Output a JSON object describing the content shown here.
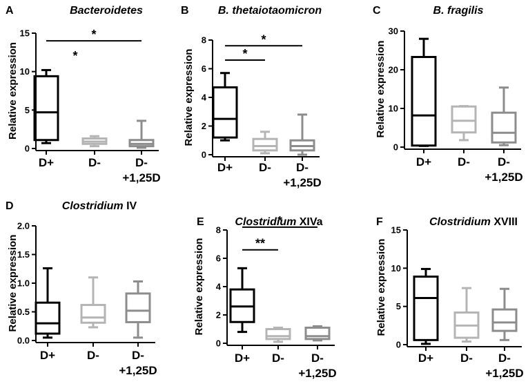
{
  "colors": {
    "D+": "#000000",
    "D-": "#b4b4b4",
    "D-+1,25D": "#8c8c8c"
  },
  "chart_data": [
    {
      "type": "box",
      "label": "A",
      "title_italic": "Bacteroidetes",
      "title_rest": "",
      "ylabel": "Relative expression",
      "ylim": [
        0,
        15
      ],
      "yticks": [
        "0",
        "5",
        "10",
        "15"
      ],
      "categories": [
        "D+",
        "D-",
        "D-\n+1,25D"
      ],
      "groups": [
        {
          "name": "D+",
          "min": 0.7,
          "q1": 1.1,
          "median": 4.7,
          "q3": 9.4,
          "max": 10.2
        },
        {
          "name": "D-",
          "min": 0.3,
          "q1": 0.6,
          "median": 0.9,
          "q3": 1.3,
          "max": 1.6
        },
        {
          "name": "D-+1,25D",
          "min": 0.1,
          "q1": 0.3,
          "median": 0.6,
          "q3": 1.1,
          "max": 3.6
        }
      ],
      "significance": [
        {
          "from": 0,
          "to": 2,
          "label": "*",
          "y": 14.0,
          "bar": true
        },
        {
          "from": 0,
          "to": 0,
          "label": "*",
          "y": 11.5,
          "bar": false,
          "at": 0.6
        }
      ]
    },
    {
      "type": "box",
      "label": "B",
      "title_italic": "B. thetaiotaomicron",
      "title_rest": "",
      "ylabel": "Relative expression",
      "ylim": [
        0,
        8
      ],
      "yticks": [
        "0",
        "2",
        "4",
        "6",
        "8"
      ],
      "categories": [
        "D+",
        "D-",
        "D-\n+1,25D"
      ],
      "groups": [
        {
          "name": "D+",
          "min": 1.0,
          "q1": 1.2,
          "median": 2.5,
          "q3": 4.7,
          "max": 5.7
        },
        {
          "name": "D-",
          "min": 0.1,
          "q1": 0.3,
          "median": 0.6,
          "q3": 1.1,
          "max": 1.6
        },
        {
          "name": "D-+1,25D",
          "min": 0.0,
          "q1": 0.3,
          "median": 0.6,
          "q3": 1.0,
          "max": 2.8
        }
      ],
      "significance": [
        {
          "from": 0,
          "to": 2,
          "label": "*",
          "y": 7.6,
          "bar": true
        },
        {
          "from": 0,
          "to": 1,
          "label": "*",
          "y": 6.6,
          "bar": true
        }
      ]
    },
    {
      "type": "box",
      "label": "C",
      "title_italic": "B. fragilis",
      "title_rest": "",
      "ylabel": "Relative expression",
      "ylim": [
        0,
        30
      ],
      "yticks": [
        "0",
        "10",
        "20",
        "30"
      ],
      "categories": [
        "D+",
        "D-",
        "D-\n+1,25D"
      ],
      "groups": [
        {
          "name": "D+",
          "min": 0.3,
          "q1": 0.4,
          "median": 8.2,
          "q3": 23.3,
          "max": 28.0
        },
        {
          "name": "D-",
          "min": 1.8,
          "q1": 3.8,
          "median": 6.8,
          "q3": 10.5,
          "max": 10.6
        },
        {
          "name": "D-+1,25D",
          "min": 0.5,
          "q1": 1.2,
          "median": 3.7,
          "q3": 8.9,
          "max": 15.4
        }
      ],
      "significance": []
    },
    {
      "type": "box",
      "label": "D",
      "title_italic": "Clostridium",
      "title_rest": " IV",
      "ylabel": "Relative expression",
      "ylim": [
        0,
        2
      ],
      "yticks": [
        "0.0",
        "0.5",
        "1.0",
        "1.5",
        "2.0"
      ],
      "categories": [
        "D+",
        "D-",
        "D-\n+1,25D"
      ],
      "groups": [
        {
          "name": "D+",
          "min": 0.05,
          "q1": 0.12,
          "median": 0.3,
          "q3": 0.66,
          "max": 1.26
        },
        {
          "name": "D-",
          "min": 0.23,
          "q1": 0.31,
          "median": 0.4,
          "q3": 0.62,
          "max": 1.1
        },
        {
          "name": "D-+1,25D",
          "min": 0.05,
          "q1": 0.32,
          "median": 0.52,
          "q3": 0.82,
          "max": 1.03
        }
      ],
      "significance": []
    },
    {
      "type": "box",
      "label": "E",
      "title_italic": "Clostridium",
      "title_rest": " XIVa",
      "ylabel": "Relative expression",
      "ylim": [
        0,
        8
      ],
      "yticks": [
        "0",
        "2",
        "4",
        "6",
        "8"
      ],
      "categories": [
        "D+",
        "D-",
        "D-\n+1,25D"
      ],
      "groups": [
        {
          "name": "D+",
          "min": 0.8,
          "q1": 1.5,
          "median": 2.6,
          "q3": 3.8,
          "max": 5.3
        },
        {
          "name": "D-",
          "min": 0.1,
          "q1": 0.3,
          "median": 0.5,
          "q3": 1.0,
          "max": 1.1
        },
        {
          "name": "D-+1,25D",
          "min": 0.2,
          "q1": 0.3,
          "median": 0.5,
          "q3": 1.1,
          "max": 1.2
        }
      ],
      "significance": [
        {
          "from": 0,
          "to": 2,
          "label": "*",
          "y": 8.2,
          "bar": true
        },
        {
          "from": 0,
          "to": 1,
          "label": "**",
          "y": 6.6,
          "bar": true
        }
      ]
    },
    {
      "type": "box",
      "label": "F",
      "title_italic": "Clostridium",
      "title_rest": " XVIII",
      "ylabel": "Relative expression",
      "ylim": [
        0,
        15
      ],
      "yticks": [
        "0",
        "5",
        "10",
        "15"
      ],
      "categories": [
        "D+",
        "D-",
        "D-\n+1,25D"
      ],
      "groups": [
        {
          "name": "D+",
          "min": 0.1,
          "q1": 0.6,
          "median": 6.1,
          "q3": 8.9,
          "max": 9.9
        },
        {
          "name": "D-",
          "min": 0.4,
          "q1": 0.9,
          "median": 2.5,
          "q3": 4.2,
          "max": 7.4
        },
        {
          "name": "D-+1,25D",
          "min": 0.6,
          "q1": 1.8,
          "median": 2.9,
          "q3": 4.6,
          "max": 7.3
        }
      ],
      "significance": []
    }
  ]
}
